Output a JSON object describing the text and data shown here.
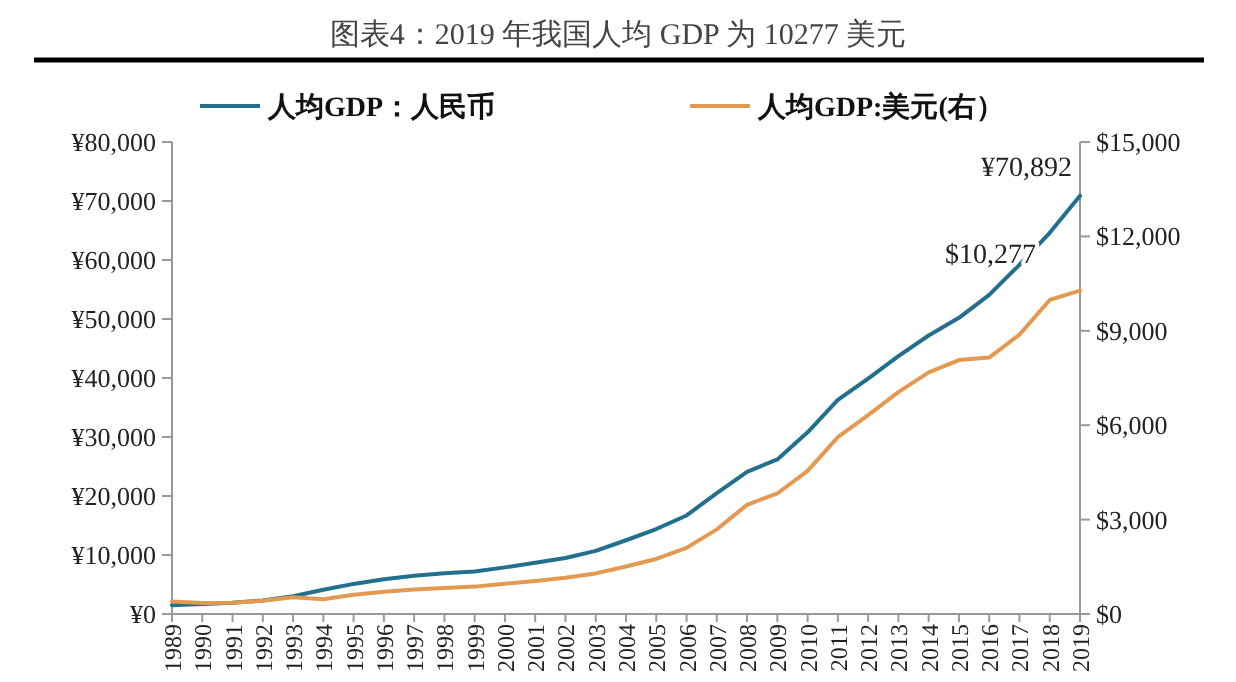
{
  "chart_data": {
    "type": "line",
    "title": "图表4：2019 年我国人均 GDP 为 10277 美元",
    "categories": [
      "1989",
      "1990",
      "1991",
      "1992",
      "1993",
      "1994",
      "1995",
      "1996",
      "1997",
      "1998",
      "1999",
      "2000",
      "2001",
      "2002",
      "2003",
      "2004",
      "2005",
      "2006",
      "2007",
      "2008",
      "2009",
      "2010",
      "2011",
      "2012",
      "2013",
      "2014",
      "2015",
      "2016",
      "2017",
      "2018",
      "2019"
    ],
    "series": [
      {
        "name": "人均GDP：人民币",
        "color": "#22708e",
        "values": [
          1500,
          1700,
          1900,
          2300,
          3000,
          4100,
          5100,
          5900,
          6500,
          6900,
          7200,
          7900,
          8700,
          9500,
          10700,
          12500,
          14400,
          16700,
          20500,
          24100,
          26200,
          30800,
          36300,
          39900,
          43700,
          47200,
          50200,
          54100,
          59200,
          64600,
          70892
        ]
      },
      {
        "name": "人均GDP:美元(右）",
        "color": "#e39a50",
        "axis": "y2",
        "values": [
          400,
          350,
          360,
          420,
          530,
          470,
          610,
          710,
          780,
          830,
          870,
          960,
          1050,
          1150,
          1290,
          1510,
          1750,
          2100,
          2690,
          3470,
          3830,
          4550,
          5620,
          6320,
          7050,
          7680,
          8070,
          8150,
          8880,
          9980,
          10277
        ]
      }
    ],
    "ylim": [
      0,
      80000
    ],
    "yticks": [
      {
        "value": 0,
        "label": "¥0"
      },
      {
        "value": 10000,
        "label": "¥10,000"
      },
      {
        "value": 20000,
        "label": "¥20,000"
      },
      {
        "value": 30000,
        "label": "¥30,000"
      },
      {
        "value": 40000,
        "label": "¥40,000"
      },
      {
        "value": 50000,
        "label": "¥50,000"
      },
      {
        "value": 60000,
        "label": "¥60,000"
      },
      {
        "value": 70000,
        "label": "¥70,000"
      },
      {
        "value": 80000,
        "label": "¥80,000"
      }
    ],
    "y2lim": [
      0,
      15000
    ],
    "y2ticks": [
      {
        "value": 0,
        "label": "$0"
      },
      {
        "value": 3000,
        "label": "$3,000"
      },
      {
        "value": 6000,
        "label": "$6,000"
      },
      {
        "value": 9000,
        "label": "$9,000"
      },
      {
        "value": 12000,
        "label": "$12,000"
      },
      {
        "value": 15000,
        "label": "$15,000"
      }
    ],
    "annotations": [
      {
        "text": "¥70,892",
        "x": "2019",
        "y": 70892
      },
      "$10,277"
    ],
    "legend": "top",
    "grid": false,
    "marker": "none",
    "line_style": "solid"
  }
}
